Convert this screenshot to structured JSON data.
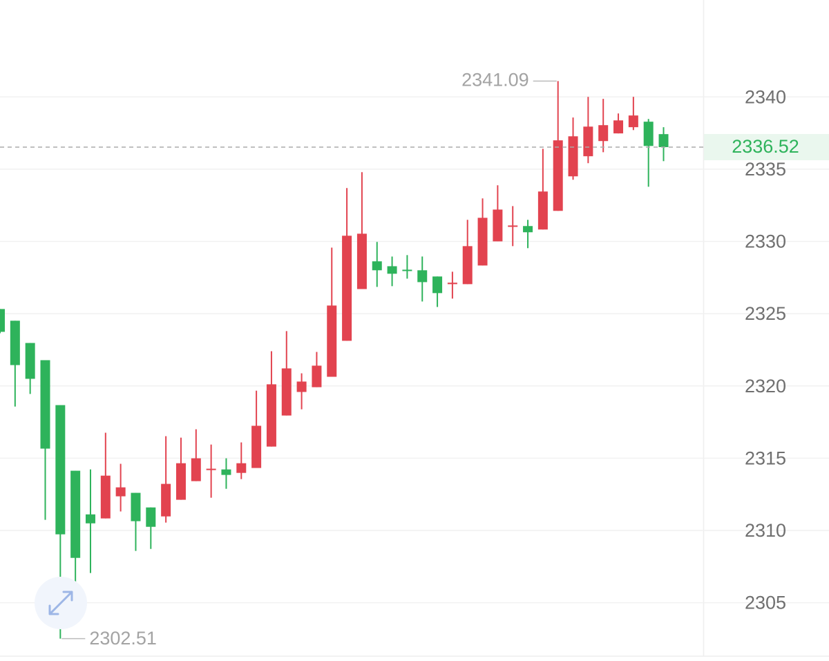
{
  "chart_data": {
    "type": "candlestick",
    "ylim": [
      2301.3,
      2346.7
    ],
    "yticks": [
      2305,
      2310,
      2315,
      2320,
      2325,
      2330,
      2335,
      2340
    ],
    "grid": true,
    "up_color": "#e2434f",
    "down_color": "#2eb35b",
    "max_label": 2341.09,
    "min_label": 2302.51,
    "last_price": 2336.52,
    "open": [
      2325.32,
      2324.51,
      2322.97,
      2321.78,
      2318.67,
      2314.13,
      2311.11,
      2310.83,
      2312.36,
      2312.6,
      2311.59,
      2310.97,
      2312.12,
      2313.41,
      2314.18,
      2314.22,
      2313.98,
      2314.32,
      2315.8,
      2317.95,
      2319.58,
      2319.91,
      2320.63,
      2323.12,
      2326.7,
      2328.62,
      2328.28,
      2328.04,
      2328.0,
      2327.57,
      2327.04,
      2327.04,
      2328.33,
      2330.0,
      2331.06,
      2331.06,
      2330.82,
      2332.11,
      2334.5,
      2335.89,
      2336.94,
      2337.47,
      2337.9,
      2338.28,
      2337.42
    ],
    "high": [
      2325.32,
      2324.51,
      2322.97,
      2321.78,
      2318.67,
      2314.13,
      2314.22,
      2316.76,
      2314.61,
      2312.6,
      2311.59,
      2316.52,
      2316.42,
      2317.0,
      2315.94,
      2314.99,
      2316.09,
      2319.67,
      2322.4,
      2323.79,
      2320.87,
      2322.35,
      2329.57,
      2333.69,
      2334.79,
      2329.96,
      2328.95,
      2329.05,
      2328.95,
      2327.57,
      2327.9,
      2331.49,
      2332.97,
      2333.88,
      2332.44,
      2331.49,
      2336.41,
      2341.09,
      2338.57,
      2340.0,
      2339.86,
      2338.85,
      2340.0,
      2338.47,
      2337.9
    ],
    "low": [
      2323.64,
      2318.57,
      2319.44,
      2310.73,
      2302.51,
      2305.47,
      2307.05,
      2310.83,
      2311.31,
      2308.58,
      2308.72,
      2310.54,
      2312.12,
      2313.41,
      2312.26,
      2312.88,
      2313.55,
      2314.32,
      2315.8,
      2317.95,
      2318.38,
      2319.91,
      2320.63,
      2323.12,
      2326.7,
      2326.85,
      2326.9,
      2327.42,
      2325.84,
      2325.46,
      2326.04,
      2327.04,
      2328.33,
      2330.0,
      2329.67,
      2329.53,
      2330.82,
      2332.11,
      2334.26,
      2335.41,
      2336.17,
      2337.47,
      2337.7,
      2333.78,
      2335.55
    ],
    "close": [
      2323.74,
      2321.44,
      2320.49,
      2315.66,
      2309.73,
      2308.1,
      2310.49,
      2313.79,
      2312.98,
      2310.64,
      2310.25,
      2313.22,
      2314.65,
      2314.99,
      2314.27,
      2313.84,
      2314.65,
      2317.24,
      2320.11,
      2321.21,
      2320.3,
      2321.4,
      2325.56,
      2330.39,
      2330.53,
      2328.0,
      2327.76,
      2327.95,
      2327.18,
      2326.42,
      2327.14,
      2329.67,
      2331.63,
      2332.2,
      2331.1,
      2330.63,
      2333.45,
      2336.99,
      2337.27,
      2337.94,
      2338.04,
      2338.37,
      2338.71,
      2336.6,
      2336.52
    ]
  }
}
